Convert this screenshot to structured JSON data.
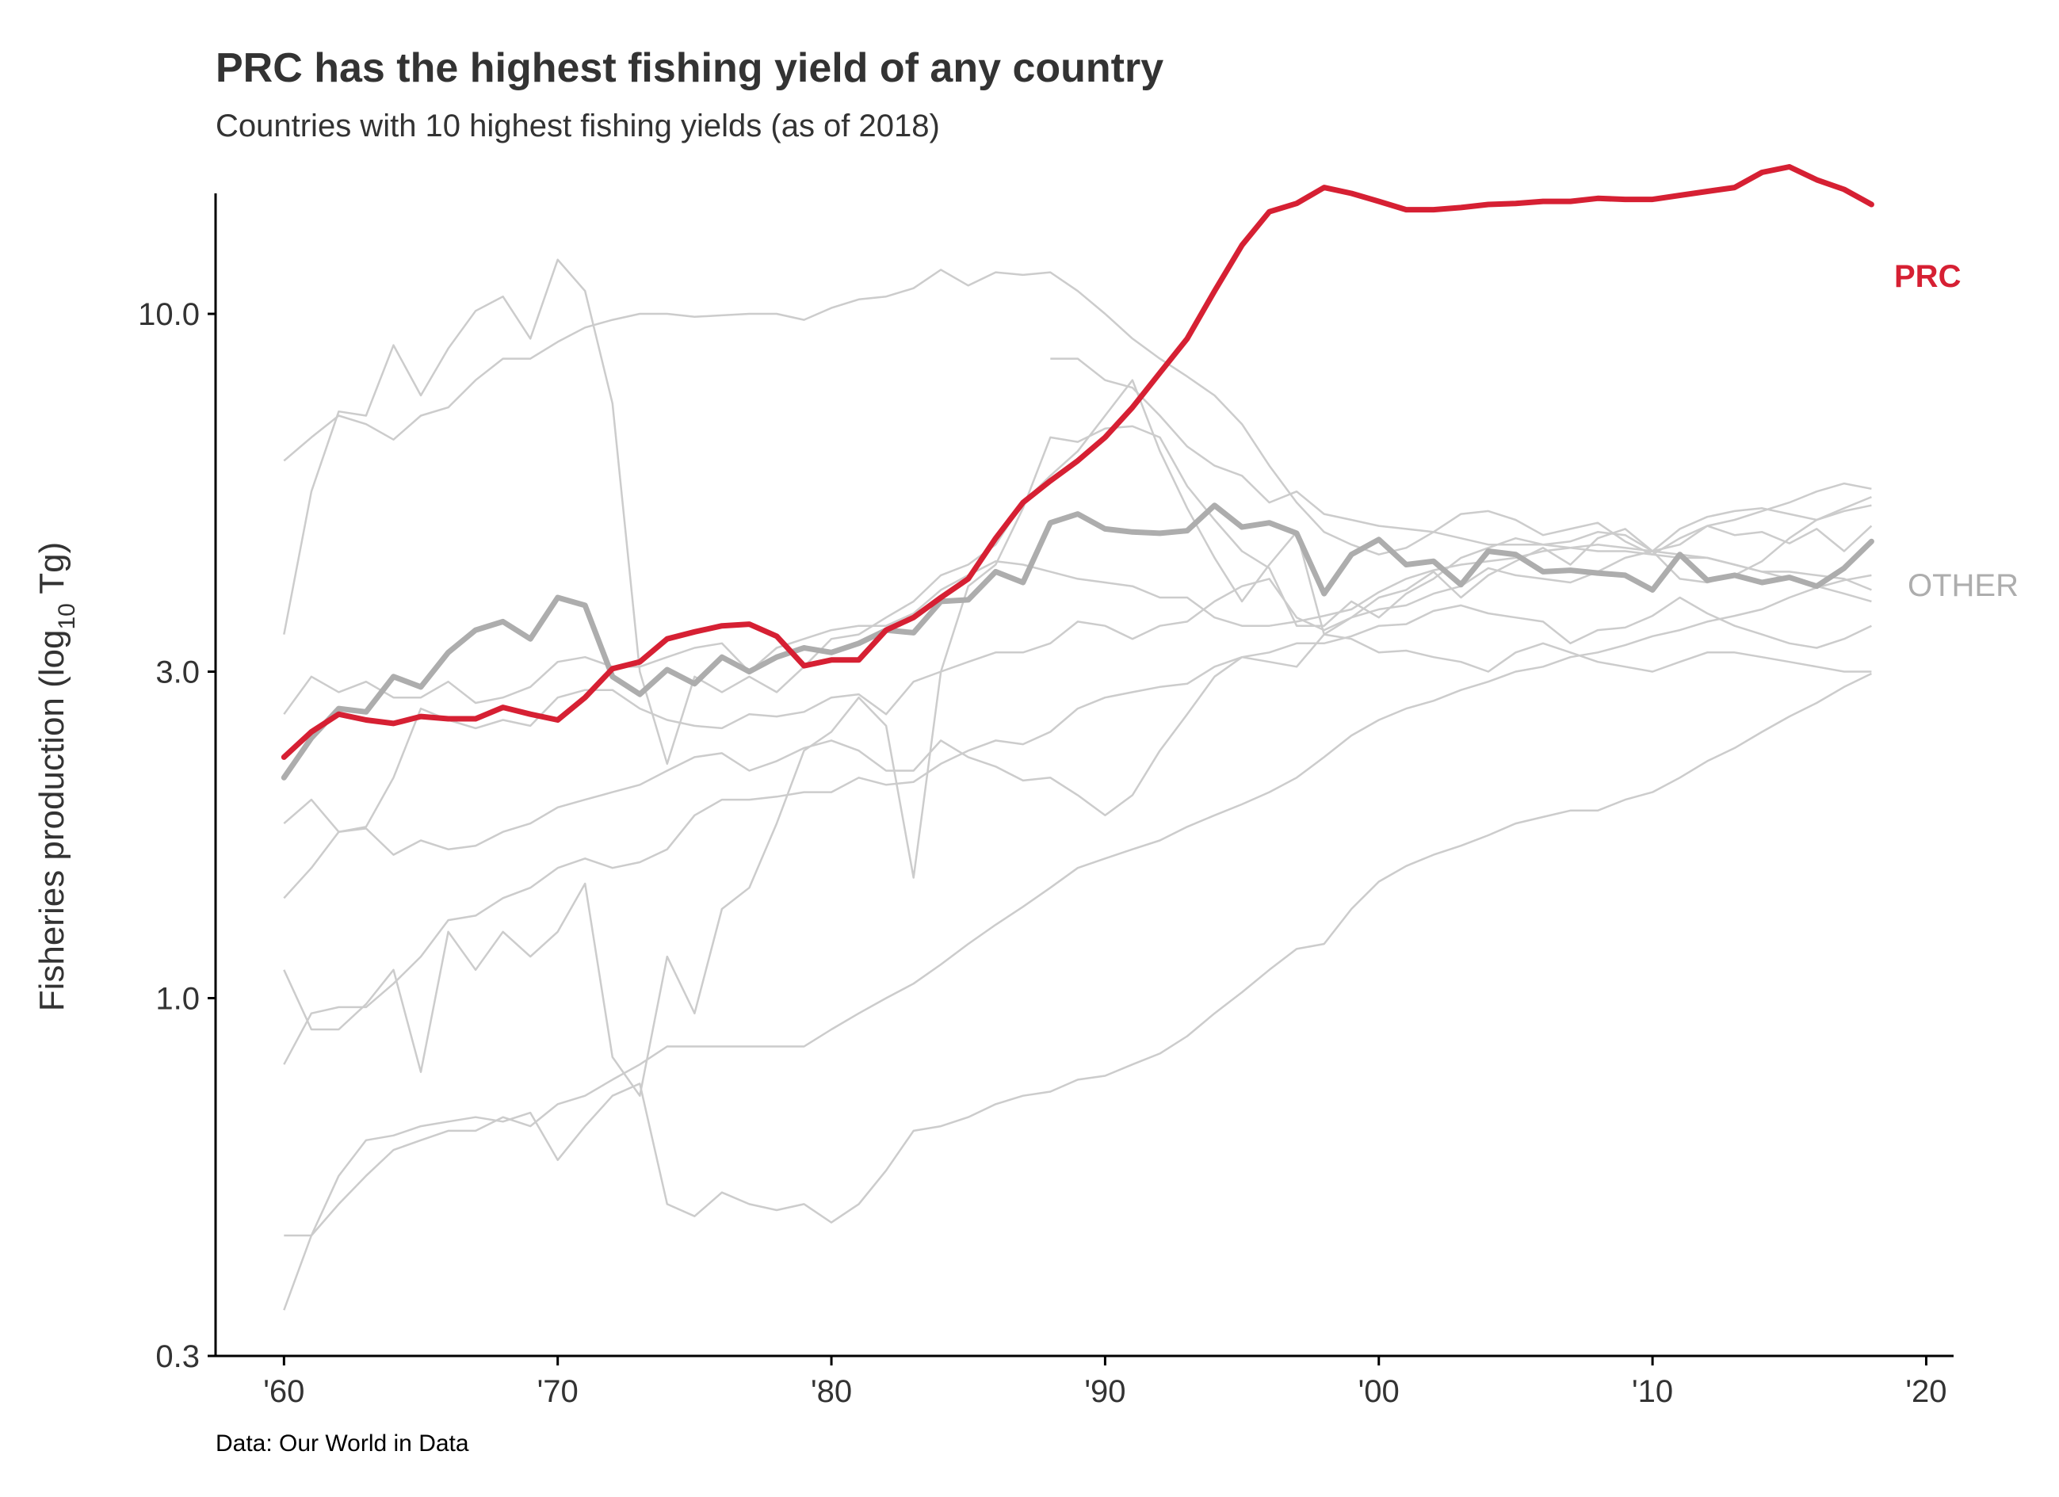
{
  "chart_data": {
    "type": "line",
    "title": "PRC has the highest fishing yield of any country",
    "subtitle": "Countries with 10 highest fishing yields (as of 2018)",
    "caption": "Data: Our World in Data",
    "ylabel": {
      "main": "Fisheries production (log",
      "sub": "10",
      "unit": " Tg)"
    },
    "xlabel": "",
    "y_scale": "log10",
    "ylim": [
      0.3,
      15
    ],
    "xlim": [
      1957.5,
      2021
    ],
    "x_ticks": [
      {
        "value": 1960,
        "label": "'60"
      },
      {
        "value": 1970,
        "label": "'70"
      },
      {
        "value": 1980,
        "label": "'80"
      },
      {
        "value": 1990,
        "label": "'90"
      },
      {
        "value": 2000,
        "label": "'00"
      },
      {
        "value": 2010,
        "label": "'10"
      },
      {
        "value": 2020,
        "label": "'20"
      }
    ],
    "y_ticks": [
      {
        "value": 0.3,
        "label": "0.3"
      },
      {
        "value": 1.0,
        "label": "1.0"
      },
      {
        "value": 3.0,
        "label": "3.0"
      },
      {
        "value": 10.0,
        "label": "10.0"
      }
    ],
    "grid": false,
    "colors": {
      "highlight": "#d62033",
      "average": "#adadad",
      "background_lines": "#cccccc",
      "axis": "#000000",
      "text": "#333333"
    },
    "highlight_series": {
      "label": "PRC",
      "x_start": 1960,
      "values": [
        2.25,
        2.45,
        2.6,
        2.55,
        2.52,
        2.58,
        2.56,
        2.56,
        2.66,
        2.6,
        2.55,
        2.75,
        3.03,
        3.1,
        3.35,
        3.43,
        3.5,
        3.52,
        3.38,
        3.06,
        3.12,
        3.12,
        3.45,
        3.6,
        3.85,
        4.1,
        4.7,
        5.3,
        5.7,
        6.1,
        6.6,
        7.3,
        8.2,
        9.2,
        10.8,
        12.6,
        14.1,
        14.5,
        15.3,
        15.0,
        14.6,
        14.2,
        14.2,
        14.3,
        14.45,
        14.5,
        14.6,
        14.6,
        14.75,
        14.7,
        14.7,
        14.9,
        15.1,
        15.3,
        16.1,
        16.4,
        15.7,
        15.2,
        14.45
      ]
    },
    "average_series": {
      "label": "OTHER",
      "x_start": 1960,
      "values": [
        2.1,
        2.4,
        2.65,
        2.62,
        2.95,
        2.85,
        3.2,
        3.45,
        3.55,
        3.35,
        3.85,
        3.75,
        2.95,
        2.78,
        3.02,
        2.88,
        3.15,
        3.0,
        3.15,
        3.25,
        3.2,
        3.3,
        3.45,
        3.42,
        3.8,
        3.82,
        4.2,
        4.05,
        4.95,
        5.1,
        4.85,
        4.8,
        4.78,
        4.82,
        5.25,
        4.88,
        4.95,
        4.78,
        3.9,
        4.45,
        4.68,
        4.3,
        4.35,
        4.02,
        4.5,
        4.45,
        4.2,
        4.22,
        4.18,
        4.15,
        3.95,
        4.45,
        4.08,
        4.15,
        4.05,
        4.12,
        4.0,
        4.25,
        4.65
      ]
    },
    "other_series": [
      {
        "x_start": 1960,
        "values": [
          6.1,
          6.6,
          7.1,
          6.9,
          6.55,
          7.1,
          7.3,
          8.0,
          8.6,
          8.6,
          9.1,
          9.55,
          9.8,
          10.0,
          10.0,
          9.9,
          9.95,
          10.0,
          10.0,
          9.8,
          10.2,
          10.5,
          10.6,
          10.9,
          11.6,
          11.0,
          11.5,
          11.4,
          11.5,
          10.8,
          10.0,
          9.2,
          8.6,
          8.1,
          7.6,
          6.9,
          6.0,
          5.3,
          4.8,
          4.6,
          4.45,
          4.55,
          4.8,
          5.1,
          5.15,
          5.0,
          4.75,
          4.85,
          4.95,
          4.65,
          4.45,
          4.7,
          4.9,
          5.0,
          5.15,
          5.3,
          5.5,
          5.65,
          5.55
        ]
      },
      {
        "x_start": 1960,
        "values": [
          3.4,
          5.5,
          7.2,
          7.1,
          9.0,
          7.6,
          8.9,
          10.1,
          10.6,
          9.2,
          12.0,
          10.8,
          7.4,
          3.0,
          2.2,
          2.95,
          2.8,
          2.95,
          2.8,
          3.05,
          3.35,
          3.4,
          3.6,
          3.8,
          4.15,
          4.3,
          4.6,
          5.3,
          5.8,
          6.3,
          7.1,
          8.0,
          6.3,
          5.2,
          4.4,
          3.8,
          4.3,
          4.8,
          3.4,
          3.6,
          3.85,
          3.95,
          4.2,
          3.85,
          4.15,
          4.35,
          4.55,
          4.3,
          4.7,
          4.85,
          4.5,
          4.85,
          5.05,
          5.15,
          5.2,
          5.1,
          5.0,
          5.15,
          5.25
        ]
      },
      {
        "x_start": 1960,
        "values": [
          1.8,
          1.95,
          1.75,
          1.78,
          2.1,
          2.65,
          2.55,
          2.48,
          2.55,
          2.5,
          2.75,
          2.82,
          2.82,
          2.65,
          2.55,
          2.5,
          2.48,
          2.6,
          2.58,
          2.62,
          2.75,
          2.78,
          2.6,
          2.9,
          3.0,
          3.1,
          3.2,
          3.2,
          3.3,
          3.55,
          3.5,
          3.35,
          3.5,
          3.55,
          3.8,
          4.0,
          4.1,
          3.6,
          3.45,
          3.6,
          3.7,
          3.75,
          3.9,
          4.0,
          4.25,
          4.15,
          4.1,
          4.05,
          4.2,
          4.4,
          4.5,
          4.1,
          4.05,
          4.15,
          4.35,
          4.7,
          5.0,
          5.2,
          5.4
        ]
      },
      {
        "x_start": 1960,
        "values": [
          0.45,
          0.45,
          0.5,
          0.55,
          0.6,
          0.62,
          0.64,
          0.64,
          0.67,
          0.65,
          0.7,
          0.72,
          0.76,
          0.8,
          0.85,
          0.85,
          0.85,
          0.85,
          0.85,
          0.85,
          0.9,
          0.95,
          1.0,
          1.05,
          1.12,
          1.2,
          1.28,
          1.36,
          1.45,
          1.55,
          1.6,
          1.65,
          1.7,
          1.78,
          1.85,
          1.92,
          2.0,
          2.1,
          2.25,
          2.42,
          2.55,
          2.65,
          2.72,
          2.82,
          2.9,
          3.0,
          3.05,
          3.15,
          3.2,
          3.28,
          3.38,
          3.45,
          3.55,
          3.62,
          3.7,
          3.85,
          3.98,
          4.08,
          4.15
        ]
      },
      {
        "x_start": 1960,
        "values": [
          0.35,
          0.45,
          0.55,
          0.62,
          0.63,
          0.65,
          0.66,
          0.67,
          0.66,
          0.68,
          0.58,
          0.65,
          0.72,
          0.75,
          0.5,
          0.48,
          0.52,
          0.5,
          0.49,
          0.5,
          0.47,
          0.5,
          0.56,
          0.64,
          0.65,
          0.67,
          0.7,
          0.72,
          0.73,
          0.76,
          0.77,
          0.8,
          0.83,
          0.88,
          0.95,
          1.02,
          1.1,
          1.18,
          1.2,
          1.35,
          1.48,
          1.56,
          1.62,
          1.67,
          1.73,
          1.8,
          1.84,
          1.88,
          1.88,
          1.95,
          2.0,
          2.1,
          2.22,
          2.32,
          2.45,
          2.58,
          2.7,
          2.85,
          2.98
        ]
      },
      {
        "x_start": 1960,
        "values": [
          1.1,
          0.9,
          0.9,
          0.98,
          1.1,
          0.78,
          1.25,
          1.1,
          1.25,
          1.15,
          1.25,
          1.47,
          0.82,
          0.72,
          1.15,
          0.95,
          1.35,
          1.45,
          1.8,
          2.3,
          2.45,
          2.75,
          2.5,
          1.5,
          3.0,
          4.0,
          4.3,
          5.2,
          6.6,
          6.5,
          6.8,
          6.85,
          6.6,
          5.6,
          5.0,
          4.5,
          4.25,
          3.5,
          3.5,
          3.8,
          3.6,
          3.9,
          4.1,
          4.4,
          4.55,
          4.7,
          4.6,
          4.65,
          4.8,
          4.75,
          4.5,
          4.6,
          4.9,
          4.75,
          4.8,
          4.62,
          4.85,
          4.5,
          4.9
        ]
      },
      {
        "x_start": 1960,
        "values": [
          0.8,
          0.95,
          0.97,
          0.97,
          1.05,
          1.15,
          1.3,
          1.32,
          1.4,
          1.45,
          1.55,
          1.6,
          1.55,
          1.58,
          1.65,
          1.85,
          1.95,
          1.95,
          1.97,
          2.0,
          2.0,
          2.1,
          2.05,
          2.07,
          2.2,
          2.3,
          2.38,
          2.35,
          2.45,
          2.65,
          2.75,
          2.8,
          2.85,
          2.88,
          3.05,
          3.15,
          3.2,
          3.3,
          3.3,
          3.38,
          3.5,
          3.52,
          3.68,
          3.75,
          3.65,
          3.6,
          3.55,
          3.3,
          3.45,
          3.48,
          3.62,
          3.85,
          3.65,
          3.5,
          3.4,
          3.3,
          3.25,
          3.35,
          3.5
        ]
      },
      {
        "x_start": 1960,
        "values": [
          1.4,
          1.55,
          1.75,
          1.77,
          1.62,
          1.7,
          1.65,
          1.67,
          1.75,
          1.8,
          1.9,
          1.95,
          2.0,
          2.05,
          2.15,
          2.25,
          2.28,
          2.15,
          2.22,
          2.32,
          2.38,
          2.3,
          2.15,
          2.15,
          2.38,
          2.25,
          2.18,
          2.08,
          2.1,
          1.98,
          1.85,
          1.98,
          2.3,
          2.6,
          2.95,
          3.15,
          3.1,
          3.05,
          3.4,
          3.35,
          3.2,
          3.22,
          3.15,
          3.1,
          3.0,
          3.2,
          3.3,
          3.2,
          3.1,
          3.05,
          3.0,
          3.1,
          3.2,
          3.2,
          3.15,
          3.1,
          3.05,
          3.0,
          3.0
        ]
      },
      {
        "x_start": 1960,
        "values": [
          2.6,
          2.95,
          2.8,
          2.9,
          2.75,
          2.75,
          2.9,
          2.7,
          2.75,
          2.85,
          3.1,
          3.15,
          3.05,
          3.05,
          3.15,
          3.25,
          3.3,
          3.0,
          3.25,
          3.35,
          3.45,
          3.5,
          3.5,
          3.65,
          3.95,
          4.15,
          4.35,
          4.3,
          4.2,
          4.1,
          4.05,
          4.0,
          3.85,
          3.85,
          3.6,
          3.5,
          3.5,
          3.55,
          3.62,
          3.7,
          3.92,
          4.1,
          4.22,
          4.3,
          4.35,
          4.4,
          4.5,
          4.55,
          4.6,
          4.55,
          4.5,
          4.45,
          4.4,
          4.3,
          4.2,
          4.2,
          4.15,
          4.1,
          3.95
        ]
      },
      {
        "x_start": 1988,
        "values": [
          8.6,
          8.6,
          8.0,
          7.8,
          7.1,
          6.4,
          6.0,
          5.8,
          5.3,
          5.5,
          5.1,
          5.0,
          4.9,
          4.85,
          4.8,
          4.7,
          4.6,
          4.6,
          4.6,
          4.55,
          4.5,
          4.5,
          4.45,
          4.4,
          4.4,
          4.3,
          4.2,
          4.1,
          4.0,
          3.9,
          3.8
        ]
      }
    ]
  }
}
